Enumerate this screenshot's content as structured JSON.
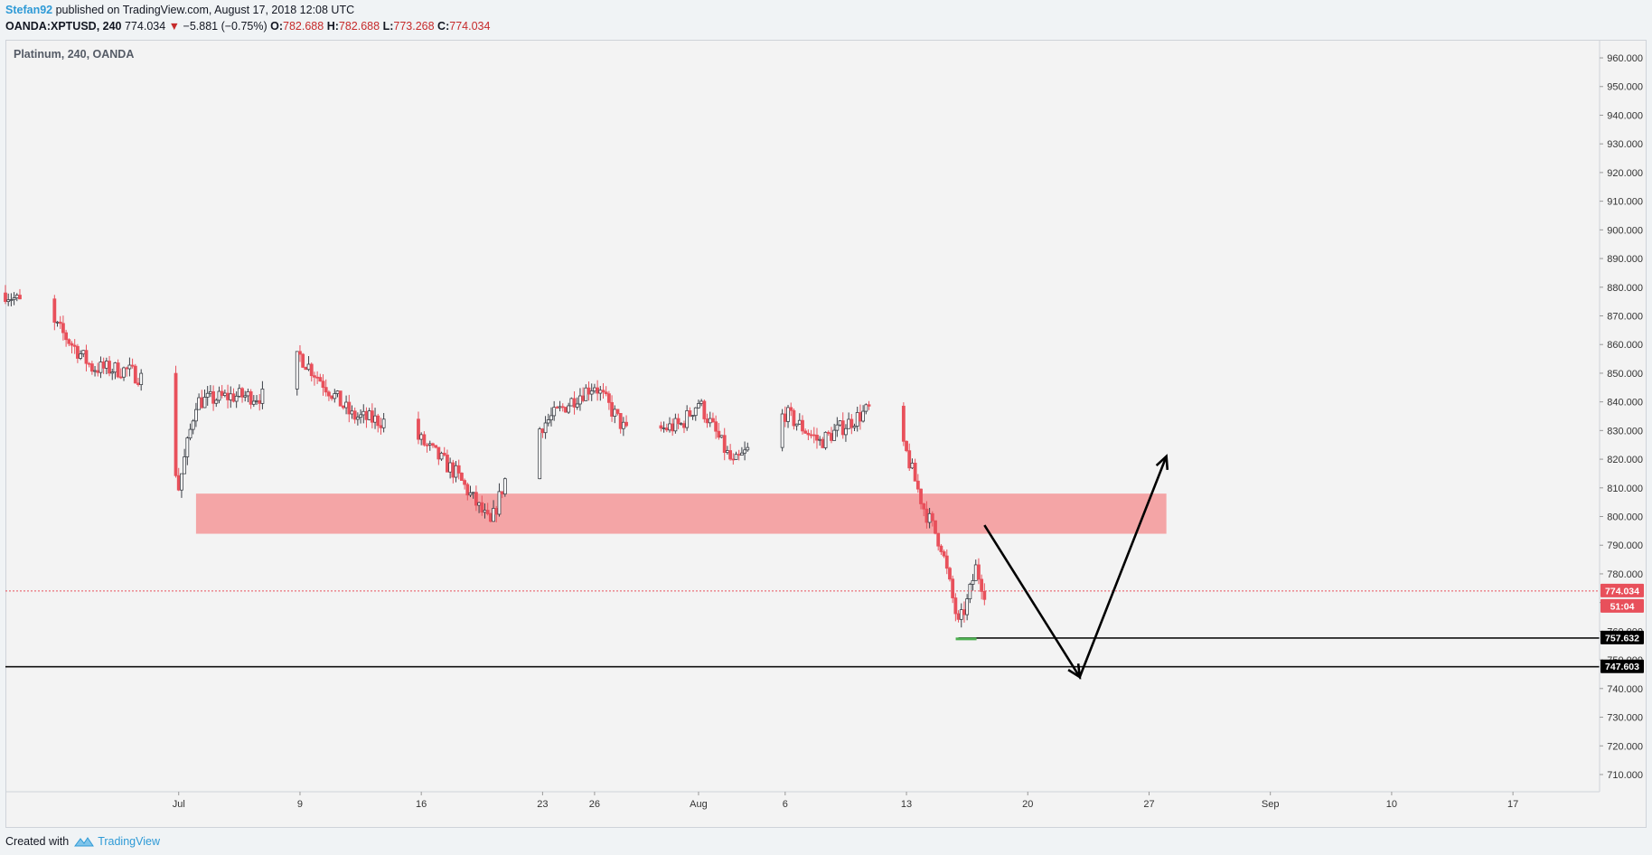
{
  "header": {
    "author": "Stefan92",
    "published": " published on TradingView.com, August 17, 2018 12:08 UTC",
    "symbol": "OANDA:XPTUSD, 240",
    "last": "774.034",
    "change_arrow": "▼",
    "change": "−5.881 (−0.75%)",
    "o_label": "O:",
    "o_value": "782.688",
    "h_label": "H:",
    "h_value": "782.688",
    "l_label": "L:",
    "l_value": "773.268",
    "c_label": "C:",
    "c_value": "774.034"
  },
  "chart_legend": "Platinum, 240, OANDA",
  "footer": {
    "created_with": "Created with",
    "brand": "TradingView"
  },
  "colors": {
    "up": "#3b3f46",
    "down": "#e8505b",
    "zone": "#f4a5a6",
    "price_line": "#e8505b",
    "level_line": "#111111",
    "support_marker": "#4caf50"
  },
  "chart_data": {
    "type": "candlestick",
    "title": "Platinum, 240, OANDA",
    "ylim": [
      704,
      966
    ],
    "y_ticks": [
      710,
      720,
      730,
      740,
      750,
      760,
      770,
      780,
      790,
      800,
      810,
      820,
      830,
      840,
      850,
      860,
      870,
      880,
      890,
      900,
      910,
      920,
      930,
      940,
      950,
      960
    ],
    "x_ticks": [
      "Jul",
      "9",
      "16",
      "23",
      "26",
      "Aug",
      "6",
      "13",
      "20",
      "27",
      "Sep",
      "10",
      "17"
    ],
    "x_tick_dates": [
      "2018-07-02",
      "2018-07-09",
      "2018-07-16",
      "2018-07-23",
      "2018-07-26",
      "2018-08-01",
      "2018-08-06",
      "2018-08-13",
      "2018-08-20",
      "2018-08-27",
      "2018-09-03",
      "2018-09-10",
      "2018-09-17"
    ],
    "x_range": [
      "2018-06-22",
      "2018-09-22"
    ],
    "anchors": [
      {
        "date": "2018-06-22",
        "close": 878
      },
      {
        "date": "2018-06-25",
        "close": 866
      },
      {
        "date": "2018-06-27",
        "close": 852
      },
      {
        "date": "2018-06-29",
        "close": 851
      },
      {
        "date": "2018-07-01",
        "close": 845
      },
      {
        "date": "2018-07-02",
        "close": 810
      },
      {
        "date": "2018-07-03",
        "close": 840
      },
      {
        "date": "2018-07-05",
        "close": 842
      },
      {
        "date": "2018-07-07",
        "close": 842
      },
      {
        "date": "2018-07-09",
        "close": 856
      },
      {
        "date": "2018-07-12",
        "close": 835
      },
      {
        "date": "2018-07-15",
        "close": 832
      },
      {
        "date": "2018-07-18",
        "close": 815
      },
      {
        "date": "2018-07-20",
        "close": 797
      },
      {
        "date": "2018-07-21",
        "close": 816
      },
      {
        "date": "2018-07-23",
        "close": 832
      },
      {
        "date": "2018-07-25",
        "close": 842
      },
      {
        "date": "2018-07-26",
        "close": 846
      },
      {
        "date": "2018-07-28",
        "close": 828
      },
      {
        "date": "2018-07-31",
        "close": 832
      },
      {
        "date": "2018-08-01",
        "close": 840
      },
      {
        "date": "2018-08-03",
        "close": 818
      },
      {
        "date": "2018-08-06",
        "close": 836
      },
      {
        "date": "2018-08-08",
        "close": 826
      },
      {
        "date": "2018-08-11",
        "close": 838
      },
      {
        "date": "2018-08-13",
        "close": 822
      },
      {
        "date": "2018-08-14",
        "close": 803
      },
      {
        "date": "2018-08-15",
        "close": 790
      },
      {
        "date": "2018-08-16",
        "close": 762
      },
      {
        "date": "2018-08-16T12:00",
        "close": 770
      },
      {
        "date": "2018-08-17",
        "close": 782
      },
      {
        "date": "2018-08-17T12:00",
        "close": 774
      }
    ],
    "resistance_zone": {
      "from": "2018-07-03",
      "to": "2018-08-28",
      "low": 794,
      "high": 808
    },
    "last_price": "774.034",
    "countdown": "51:04",
    "levels": [
      {
        "label": "757.632",
        "value": 757.632,
        "from": "2018-08-16"
      },
      {
        "label": "747.603",
        "value": 747.603,
        "from": "2018-06-22"
      }
    ],
    "projection_path": [
      {
        "date": "2018-08-17T12:00",
        "value": 797
      },
      {
        "date": "2018-08-23",
        "value": 744
      },
      {
        "date": "2018-08-28",
        "value": 821
      }
    ]
  }
}
